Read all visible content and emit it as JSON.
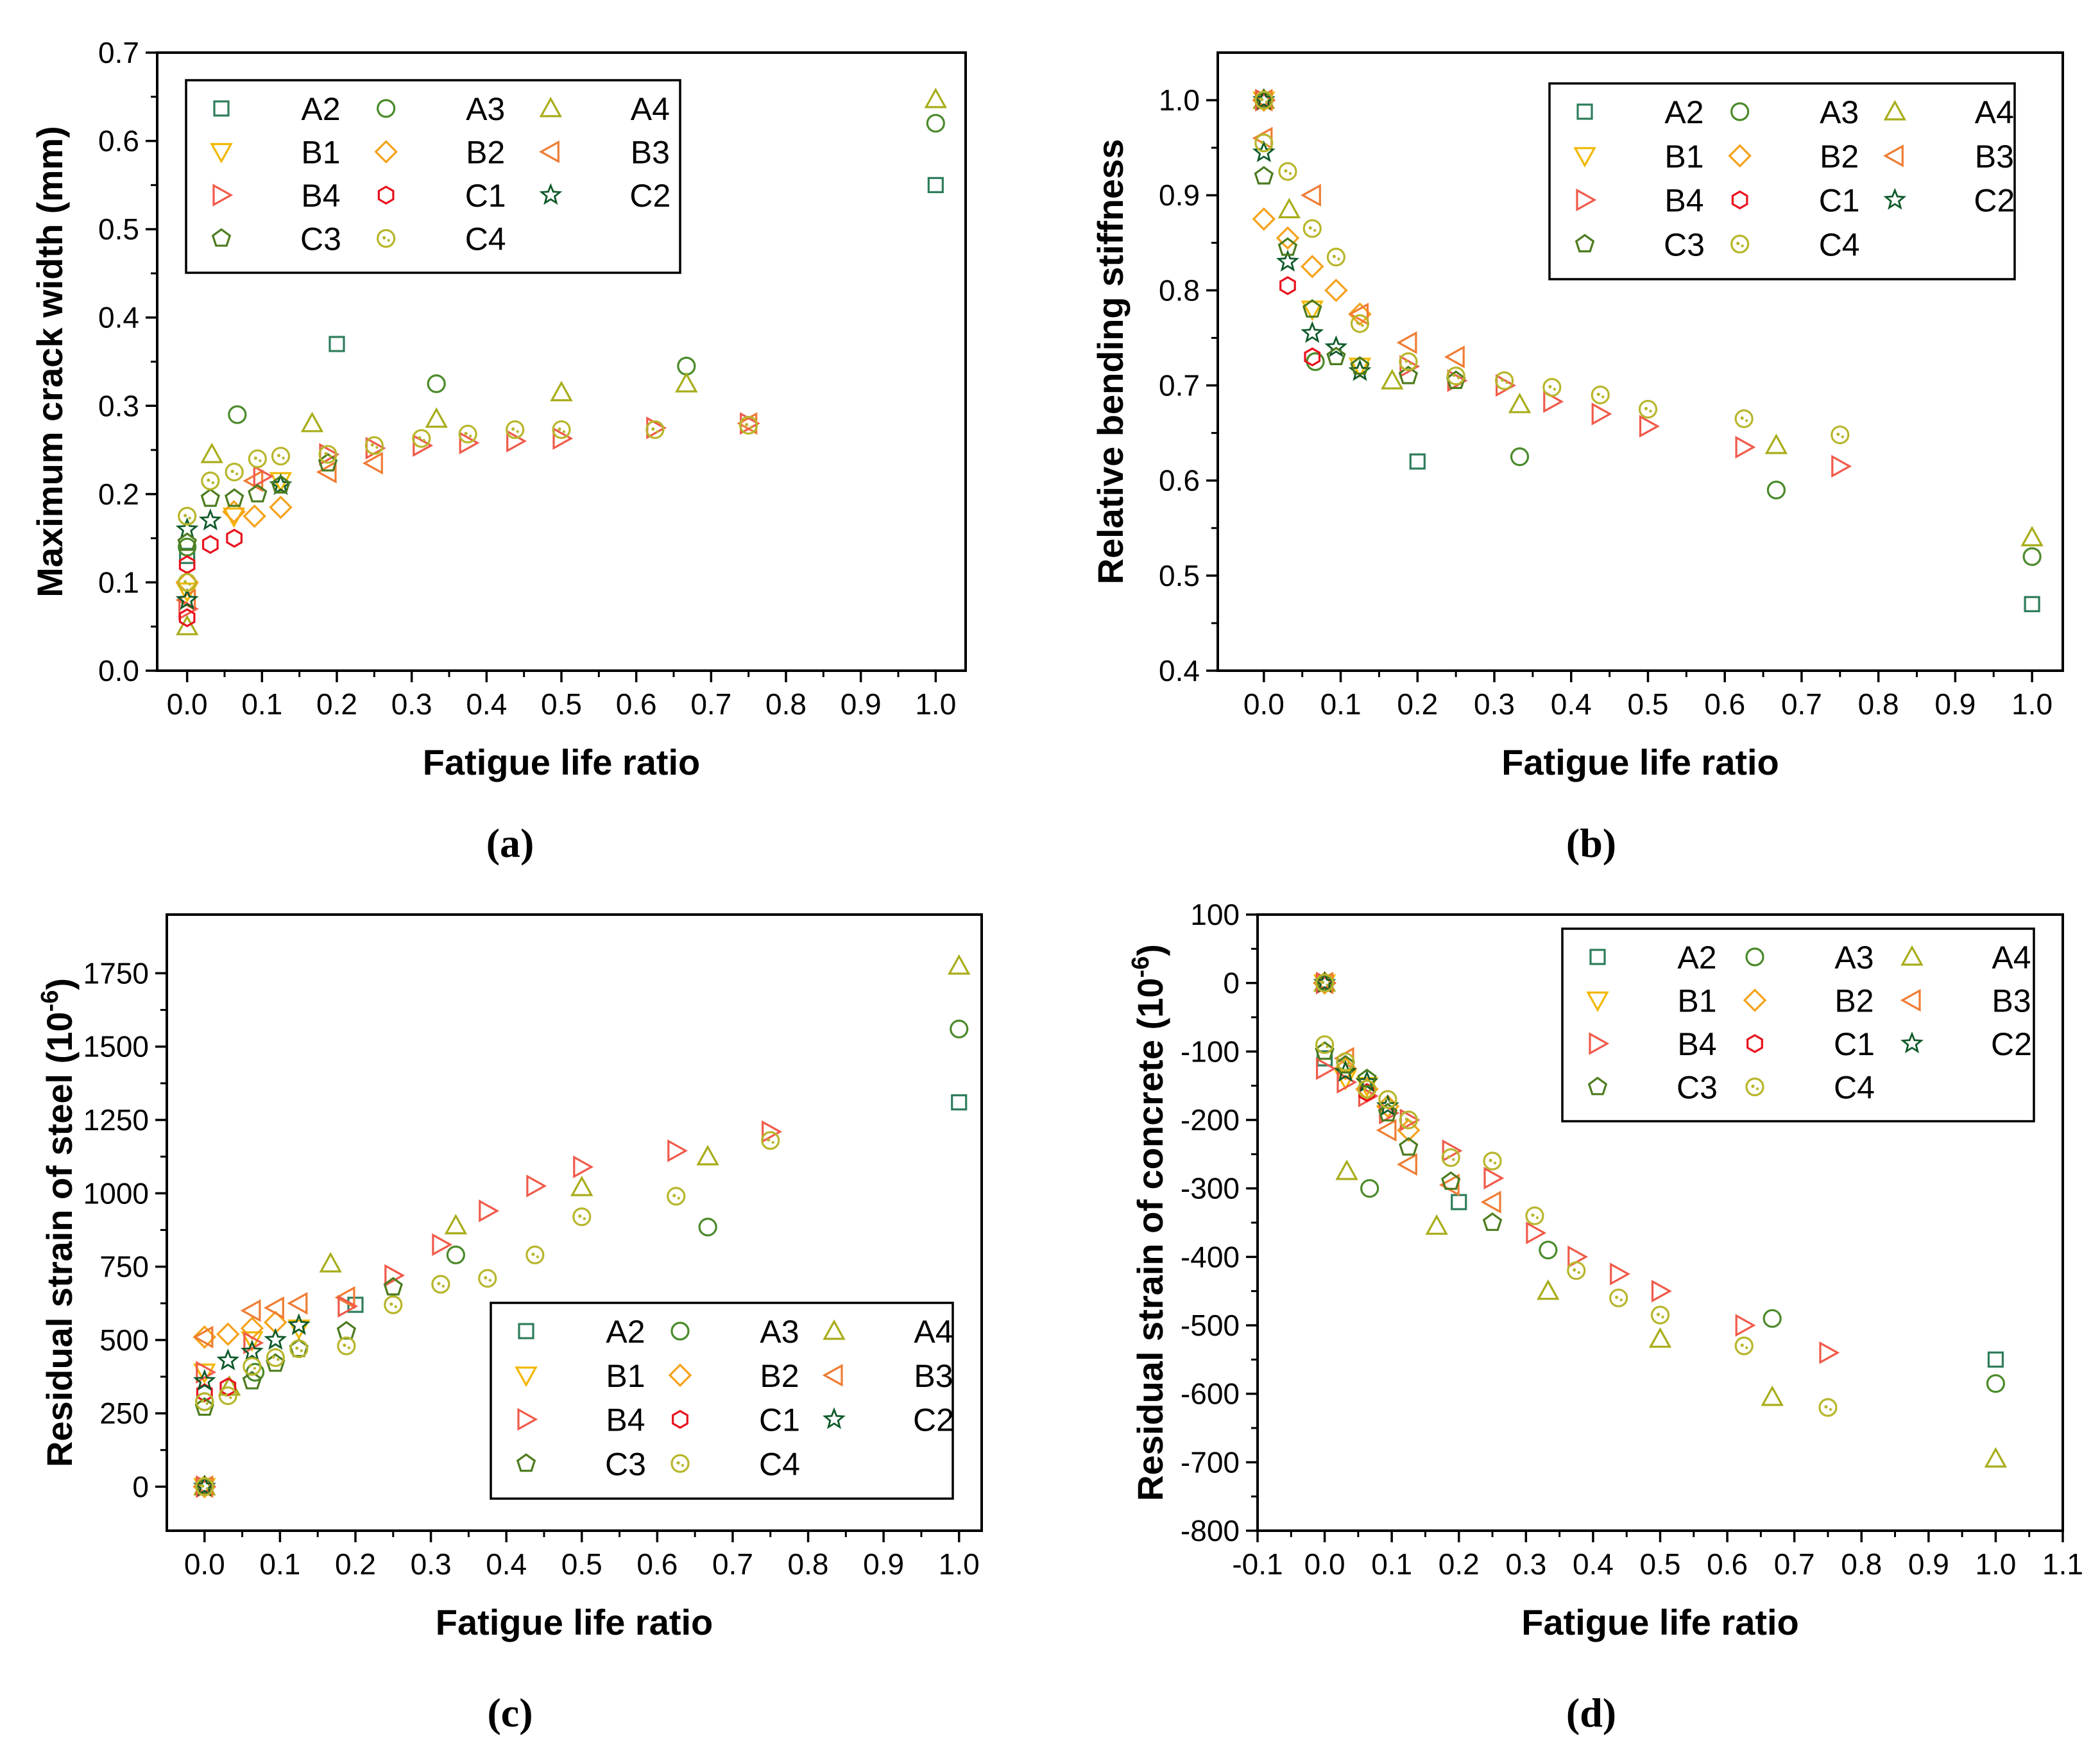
{
  "chart_data": [
    {
      "id": "a",
      "type": "scatter",
      "caption": "(a)",
      "xlabel": "Fatigue life ratio",
      "ylabel": "Maximum crack width (mm)",
      "xlim": [
        -0.04,
        1.04
      ],
      "ylim": [
        0.0,
        0.7
      ],
      "xticks": [
        0.0,
        0.1,
        0.2,
        0.3,
        0.4,
        0.5,
        0.6,
        0.7,
        0.8,
        0.9,
        1.0
      ],
      "xtick_labels": [
        "0.0",
        "0.1",
        "0.2",
        "0.3",
        "0.4",
        "0.5",
        "0.6",
        "0.7",
        "0.8",
        "0.9",
        "1.0"
      ],
      "yticks": [
        0.0,
        0.1,
        0.2,
        0.3,
        0.4,
        0.5,
        0.6,
        0.7
      ],
      "ytick_labels": [
        "0.0",
        "0.1",
        "0.2",
        "0.3",
        "0.4",
        "0.5",
        "0.6",
        "0.7"
      ],
      "legend_position": "top-left",
      "legend_rows": [
        [
          "A2",
          "A3",
          "A4"
        ],
        [
          "B1",
          "B2",
          "B3"
        ],
        [
          "B4",
          "C1",
          "C2"
        ],
        [
          "C3",
          "C4"
        ]
      ],
      "series": [
        {
          "name": "A2",
          "x": [
            0.0,
            0.2,
            1.0
          ],
          "y": [
            0.13,
            0.37,
            0.55
          ]
        },
        {
          "name": "A3",
          "x": [
            0.0,
            0.067,
            0.333,
            0.667,
            1.0
          ],
          "y": [
            0.14,
            0.29,
            0.325,
            0.345,
            0.62
          ]
        },
        {
          "name": "A4",
          "x": [
            0.0,
            0.033,
            0.167,
            0.333,
            0.5,
            0.667,
            1.0
          ],
          "y": [
            0.05,
            0.245,
            0.28,
            0.285,
            0.315,
            0.325,
            0.647
          ]
        },
        {
          "name": "B1",
          "x": [
            0.0,
            0.0625,
            0.125
          ],
          "y": [
            0.09,
            0.175,
            0.215
          ]
        },
        {
          "name": "B2",
          "x": [
            0.0,
            0.0625,
            0.09,
            0.125
          ],
          "y": [
            0.1,
            0.18,
            0.175,
            0.185
          ]
        },
        {
          "name": "B3",
          "x": [
            0.0,
            0.09,
            0.188,
            0.25,
            0.75
          ],
          "y": [
            0.08,
            0.215,
            0.225,
            0.235,
            0.28
          ]
        },
        {
          "name": "B4",
          "x": [
            0.0,
            0.1,
            0.188,
            0.25,
            0.313,
            0.375,
            0.438,
            0.5,
            0.625,
            0.75
          ],
          "y": [
            0.07,
            0.22,
            0.245,
            0.252,
            0.255,
            0.258,
            0.26,
            0.263,
            0.275,
            0.28
          ]
        },
        {
          "name": "C1",
          "x": [
            0.0,
            0.0,
            0.031,
            0.063
          ],
          "y": [
            0.06,
            0.12,
            0.143,
            0.15
          ]
        },
        {
          "name": "C2",
          "x": [
            0.0,
            0.0,
            0.031,
            0.125
          ],
          "y": [
            0.08,
            0.16,
            0.17,
            0.21
          ]
        },
        {
          "name": "C3",
          "x": [
            0.0,
            0.031,
            0.063,
            0.094,
            0.125,
            0.188
          ],
          "y": [
            0.145,
            0.195,
            0.195,
            0.2,
            0.21,
            0.235
          ]
        },
        {
          "name": "C4",
          "x": [
            0.0,
            0.0,
            0.031,
            0.063,
            0.094,
            0.125,
            0.188,
            0.25,
            0.313,
            0.375,
            0.438,
            0.5,
            0.625,
            0.75
          ],
          "y": [
            0.1,
            0.175,
            0.215,
            0.225,
            0.24,
            0.243,
            0.245,
            0.255,
            0.263,
            0.268,
            0.273,
            0.273,
            0.273,
            0.278
          ]
        }
      ]
    },
    {
      "id": "b",
      "type": "scatter",
      "caption": "(b)",
      "xlabel": "Fatigue life ratio",
      "ylabel": "Relative bending stiffness",
      "xlim": [
        -0.06,
        1.04
      ],
      "ylim": [
        0.4,
        1.05
      ],
      "xticks": [
        0.0,
        0.1,
        0.2,
        0.3,
        0.4,
        0.5,
        0.6,
        0.7,
        0.8,
        0.9,
        1.0
      ],
      "xtick_labels": [
        "0.0",
        "0.1",
        "0.2",
        "0.3",
        "0.4",
        "0.5",
        "0.6",
        "0.7",
        "0.8",
        "0.9",
        "1.0"
      ],
      "yticks": [
        0.4,
        0.5,
        0.6,
        0.7,
        0.8,
        0.9,
        1.0
      ],
      "ytick_labels": [
        "0.4",
        "0.5",
        "0.6",
        "0.7",
        "0.8",
        "0.9",
        "1.0"
      ],
      "legend_position": "top-right",
      "legend_rows": [
        [
          "A2",
          "A3",
          "A4"
        ],
        [
          "B1",
          "B2",
          "B3"
        ],
        [
          "B4",
          "C1",
          "C2"
        ],
        [
          "C3",
          "C4"
        ]
      ],
      "series": [
        {
          "name": "A2",
          "x": [
            0.0,
            0.2,
            1.0
          ],
          "y": [
            1.0,
            0.62,
            0.47
          ]
        },
        {
          "name": "A3",
          "x": [
            0.0,
            0.067,
            0.333,
            0.667,
            1.0
          ],
          "y": [
            1.0,
            0.725,
            0.625,
            0.59,
            0.52
          ]
        },
        {
          "name": "A4",
          "x": [
            0.0,
            0.033,
            0.167,
            0.333,
            0.667,
            1.0
          ],
          "y": [
            1.0,
            0.885,
            0.705,
            0.68,
            0.637,
            0.54
          ]
        },
        {
          "name": "B1",
          "x": [
            0.0,
            0.063,
            0.125
          ],
          "y": [
            1.0,
            0.78,
            0.72
          ]
        },
        {
          "name": "B2",
          "x": [
            0.0,
            0.0,
            0.031,
            0.063,
            0.094,
            0.125
          ],
          "y": [
            1.0,
            0.875,
            0.855,
            0.825,
            0.8,
            0.775
          ]
        },
        {
          "name": "B3",
          "x": [
            0.0,
            0.0,
            0.063,
            0.125,
            0.188,
            0.25
          ],
          "y": [
            1.0,
            0.96,
            0.9,
            0.775,
            0.745,
            0.73
          ]
        },
        {
          "name": "B4",
          "x": [
            0.0,
            0.188,
            0.25,
            0.313,
            0.375,
            0.438,
            0.5,
            0.625,
            0.75
          ],
          "y": [
            1.0,
            0.72,
            0.705,
            0.7,
            0.683,
            0.67,
            0.657,
            0.635,
            0.615
          ]
        },
        {
          "name": "C1",
          "x": [
            0.0,
            0.031,
            0.063
          ],
          "y": [
            1.0,
            0.805,
            0.73
          ]
        },
        {
          "name": "C2",
          "x": [
            0.0,
            0.0,
            0.031,
            0.063,
            0.094,
            0.125
          ],
          "y": [
            1.0,
            0.945,
            0.83,
            0.755,
            0.74,
            0.715
          ]
        },
        {
          "name": "C3",
          "x": [
            0.0,
            0.0,
            0.031,
            0.063,
            0.094,
            0.125,
            0.188,
            0.25
          ],
          "y": [
            1.0,
            0.92,
            0.845,
            0.78,
            0.73,
            0.72,
            0.71,
            0.705
          ]
        },
        {
          "name": "C4",
          "x": [
            0.0,
            0.0,
            0.031,
            0.063,
            0.094,
            0.125,
            0.188,
            0.25,
            0.313,
            0.375,
            0.438,
            0.5,
            0.625,
            0.75
          ],
          "y": [
            1.0,
            0.955,
            0.925,
            0.865,
            0.835,
            0.765,
            0.725,
            0.71,
            0.705,
            0.698,
            0.69,
            0.675,
            0.665,
            0.648
          ]
        }
      ]
    },
    {
      "id": "c",
      "type": "scatter",
      "caption": "(c)",
      "xlabel": "Fatigue life ratio",
      "ylabel": "Residual strain of steel (10",
      "ylabel_sup": "-6",
      "ylabel_end": ")",
      "xlim": [
        -0.05,
        1.03
      ],
      "ylim": [
        -150,
        1950
      ],
      "xticks": [
        0.0,
        0.1,
        0.2,
        0.3,
        0.4,
        0.5,
        0.6,
        0.7,
        0.8,
        0.9,
        1.0
      ],
      "xtick_labels": [
        "0.0",
        "0.1",
        "0.2",
        "0.3",
        "0.4",
        "0.5",
        "0.6",
        "0.7",
        "0.8",
        "0.9",
        "1.0"
      ],
      "yticks": [
        0,
        250,
        500,
        750,
        1000,
        1250,
        1500,
        1750
      ],
      "ytick_labels": [
        "0",
        "250",
        "500",
        "750",
        "1000",
        "1250",
        "1500",
        "1750"
      ],
      "legend_position": "bottom-right",
      "legend_rows": [
        [
          "A2",
          "A3",
          "A4"
        ],
        [
          "B1",
          "B2",
          "B3"
        ],
        [
          "B4",
          "C1",
          "C2"
        ],
        [
          "C3",
          "C4"
        ]
      ],
      "series": [
        {
          "name": "A2",
          "x": [
            0.0,
            0.2,
            1.0
          ],
          "y": [
            0,
            620,
            1310
          ]
        },
        {
          "name": "A3",
          "x": [
            0.0,
            0.0,
            0.067,
            0.333,
            0.667,
            1.0
          ],
          "y": [
            0,
            290,
            390,
            790,
            885,
            1560
          ]
        },
        {
          "name": "A4",
          "x": [
            0.0,
            0.033,
            0.167,
            0.333,
            0.5,
            0.667,
            1.0
          ],
          "y": [
            0,
            340,
            760,
            890,
            1020,
            1125,
            1775
          ]
        },
        {
          "name": "B1",
          "x": [
            0.0,
            0.0,
            0.063,
            0.125
          ],
          "y": [
            0,
            390,
            500,
            540
          ]
        },
        {
          "name": "B2",
          "x": [
            0.0,
            0.0,
            0.031,
            0.063,
            0.094
          ],
          "y": [
            0,
            510,
            520,
            540,
            560
          ]
        },
        {
          "name": "B3",
          "x": [
            0.0,
            0.0,
            0.063,
            0.094,
            0.125,
            0.188
          ],
          "y": [
            0,
            510,
            600,
            610,
            625,
            645
          ]
        },
        {
          "name": "B4",
          "x": [
            0.0,
            0.0,
            0.063,
            0.188,
            0.25,
            0.313,
            0.375,
            0.438,
            0.5,
            0.625,
            0.75
          ],
          "y": [
            0,
            390,
            490,
            615,
            720,
            825,
            940,
            1025,
            1090,
            1145,
            1210
          ]
        },
        {
          "name": "C1",
          "x": [
            0.0,
            0.0,
            0.031
          ],
          "y": [
            0,
            320,
            340
          ]
        },
        {
          "name": "C2",
          "x": [
            0.0,
            0.0,
            0.031,
            0.063,
            0.094,
            0.125
          ],
          "y": [
            0,
            360,
            430,
            460,
            500,
            550
          ]
        },
        {
          "name": "C3",
          "x": [
            0.0,
            0.0,
            0.063,
            0.094,
            0.125,
            0.188,
            0.25
          ],
          "y": [
            0,
            270,
            360,
            420,
            470,
            530,
            680
          ]
        },
        {
          "name": "C4",
          "x": [
            0.0,
            0.0,
            0.031,
            0.063,
            0.094,
            0.125,
            0.188,
            0.25,
            0.313,
            0.375,
            0.438,
            0.5,
            0.625,
            0.75
          ],
          "y": [
            0,
            290,
            310,
            410,
            440,
            470,
            480,
            620,
            690,
            710,
            790,
            920,
            990,
            1180
          ]
        }
      ]
    },
    {
      "id": "d",
      "type": "scatter",
      "caption": "(d)",
      "xlabel": "Fatigue life ratio",
      "ylabel": "Residual strain of concrete (10",
      "ylabel_sup": "-6",
      "ylabel_end": ")",
      "xlim": [
        -0.1,
        1.1
      ],
      "ylim": [
        -800,
        100
      ],
      "xticks": [
        -0.1,
        0.0,
        0.1,
        0.2,
        0.3,
        0.4,
        0.5,
        0.6,
        0.7,
        0.8,
        0.9,
        1.0,
        1.1
      ],
      "xtick_labels": [
        "-0.1",
        "0.0",
        "0.1",
        "0.2",
        "0.3",
        "0.4",
        "0.5",
        "0.6",
        "0.7",
        "0.8",
        "0.9",
        "1.0",
        "1.1"
      ],
      "yticks": [
        100,
        0,
        -100,
        -200,
        -300,
        -400,
        -500,
        -600,
        -700,
        -800
      ],
      "ytick_labels": [
        "100",
        "0",
        "-100",
        "-200",
        "-300",
        "-400",
        "-500",
        "-600",
        "-700",
        "-800"
      ],
      "legend_position": "top-right",
      "legend_rows": [
        [
          "A2",
          "A3",
          "A4"
        ],
        [
          "B1",
          "B2",
          "B3"
        ],
        [
          "B4",
          "C1",
          "C2"
        ],
        [
          "C3",
          "C4"
        ]
      ],
      "series": [
        {
          "name": "A2",
          "x": [
            0.0,
            0.0,
            0.2,
            1.0
          ],
          "y": [
            0,
            -110,
            -320,
            -550
          ]
        },
        {
          "name": "A3",
          "x": [
            0.0,
            0.067,
            0.333,
            0.667,
            1.0
          ],
          "y": [
            0,
            -300,
            -390,
            -490,
            -585
          ]
        },
        {
          "name": "A4",
          "x": [
            0.0,
            0.033,
            0.167,
            0.333,
            0.5,
            0.667,
            1.0
          ],
          "y": [
            0,
            -275,
            -355,
            -450,
            -520,
            -605,
            -695
          ]
        },
        {
          "name": "B1",
          "x": [
            0.0,
            0.031,
            0.063
          ],
          "y": [
            0,
            -140,
            -150
          ]
        },
        {
          "name": "B2",
          "x": [
            0.0,
            0.031,
            0.063,
            0.094,
            0.125
          ],
          "y": [
            0,
            -125,
            -155,
            -180,
            -215
          ]
        },
        {
          "name": "B3",
          "x": [
            0.0,
            0.031,
            0.094,
            0.125,
            0.188,
            0.25
          ],
          "y": [
            0,
            -110,
            -215,
            -265,
            -295,
            -320
          ]
        },
        {
          "name": "B4",
          "x": [
            0.0,
            0.0,
            0.031,
            0.063,
            0.094,
            0.125,
            0.188,
            0.25,
            0.313,
            0.375,
            0.438,
            0.5,
            0.625,
            0.75
          ],
          "y": [
            0,
            -125,
            -145,
            -165,
            -190,
            -200,
            -245,
            -285,
            -365,
            -400,
            -425,
            -450,
            -500,
            -540
          ]
        },
        {
          "name": "C1",
          "x": [
            0.0,
            0.063
          ],
          "y": [
            0,
            -160
          ]
        },
        {
          "name": "C2",
          "x": [
            0.0,
            0.031,
            0.063,
            0.094
          ],
          "y": [
            0,
            -130,
            -145,
            -180
          ]
        },
        {
          "name": "C3",
          "x": [
            0.0,
            0.0,
            0.031,
            0.063,
            0.094,
            0.125,
            0.188,
            0.25
          ],
          "y": [
            0,
            -100,
            -120,
            -140,
            -190,
            -240,
            -290,
            -350
          ]
        },
        {
          "name": "C4",
          "x": [
            0.0,
            0.0,
            0.031,
            0.063,
            0.094,
            0.125,
            0.188,
            0.25,
            0.313,
            0.375,
            0.438,
            0.5,
            0.625,
            0.75
          ],
          "y": [
            0,
            -90,
            -115,
            -155,
            -170,
            -200,
            -255,
            -260,
            -340,
            -420,
            -460,
            -485,
            -530,
            -620
          ]
        }
      ]
    }
  ]
}
